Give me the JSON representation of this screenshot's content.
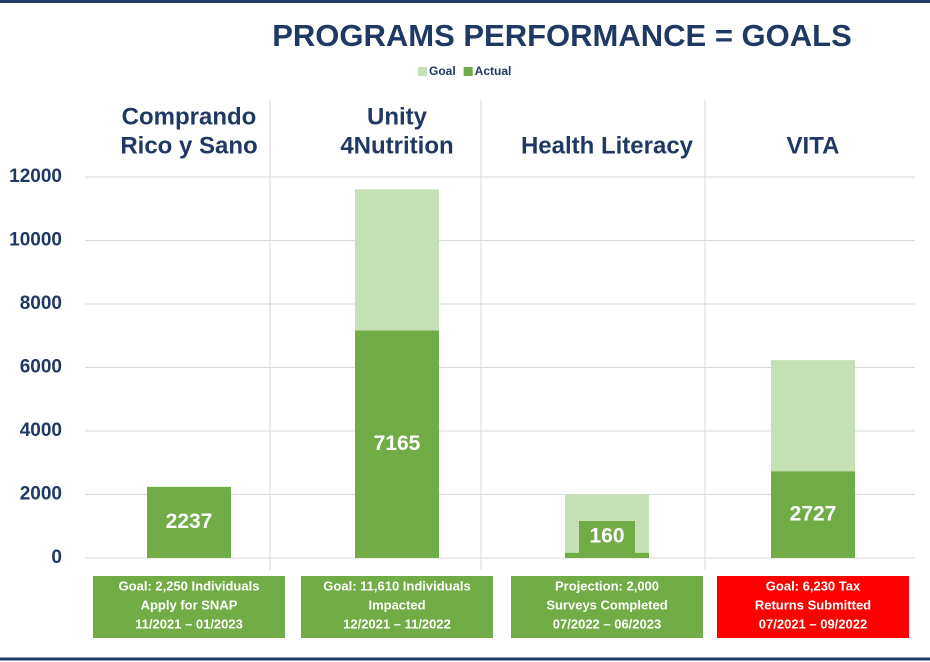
{
  "chart_data": {
    "type": "bar",
    "title": "PROGRAMS PERFORMANCE = GOALS",
    "categories": [
      [
        "Comprando",
        "Rico y Sano"
      ],
      [
        "Unity",
        "4Nutrition"
      ],
      [
        "Health Literacy"
      ],
      [
        "VITA"
      ]
    ],
    "series": [
      {
        "name": "Goal",
        "color": "#c5e0b4",
        "values": [
          2250,
          11610,
          2000,
          6230
        ]
      },
      {
        "name": "Actual",
        "color": "#70ad47",
        "values": [
          2237,
          7165,
          160,
          2727
        ]
      }
    ],
    "ylim": [
      0,
      12000
    ],
    "yticks": [
      0,
      2000,
      4000,
      6000,
      8000,
      10000,
      12000
    ],
    "grid": true,
    "annotations": [
      {
        "lines": [
          "Goal: 2,250 Individuals",
          "Apply for SNAP",
          "11/2021 – 01/2023"
        ],
        "color": "#70ad47"
      },
      {
        "lines": [
          "Goal: 11,610 Individuals",
          "Impacted",
          "12/2021 – 11/2022"
        ],
        "color": "#70ad47"
      },
      {
        "lines": [
          "Projection: 2,000",
          "Surveys Completed",
          "07/2022 – 06/2023"
        ],
        "color": "#70ad47"
      },
      {
        "lines": [
          "Goal: 6,230 Tax",
          "Returns Submitted",
          "07/2021 – 09/2022"
        ],
        "color": "#ff0000"
      }
    ]
  }
}
